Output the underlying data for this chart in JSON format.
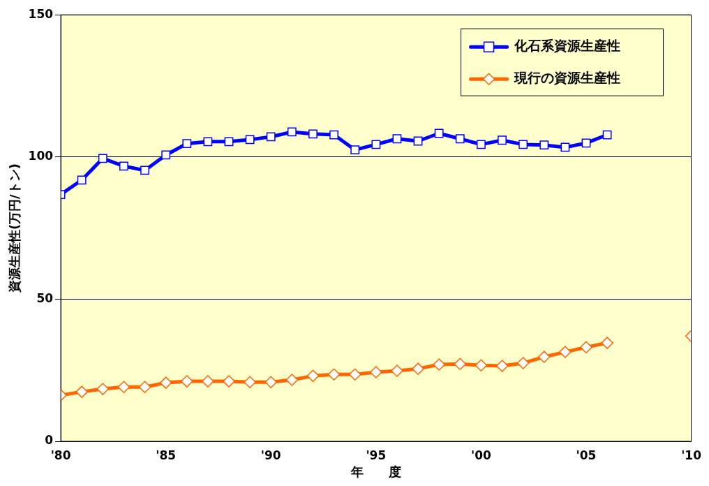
{
  "chart_data": {
    "type": "line",
    "xlabel": "年　　度",
    "ylabel": "資源生産性(万円/トン)",
    "xlim": [
      1980,
      2010
    ],
    "xticks": [
      {
        "value": 1980,
        "label": "'80"
      },
      {
        "value": 1985,
        "label": "'85"
      },
      {
        "value": 1990,
        "label": "'90"
      },
      {
        "value": 1995,
        "label": "'95"
      },
      {
        "value": 2000,
        "label": "'00"
      },
      {
        "value": 2005,
        "label": "'05"
      },
      {
        "value": 2010,
        "label": "'10"
      }
    ],
    "ylim": [
      0,
      150
    ],
    "yticks": [
      0,
      50,
      100,
      150
    ],
    "grid": "y",
    "legend": "top right",
    "line_style": "solid",
    "series": [
      {
        "name": "化石系資源生産性",
        "color": "#0000ff",
        "marker": "square",
        "x": [
          1980,
          1981,
          1982,
          1983,
          1984,
          1985,
          1986,
          1987,
          1988,
          1989,
          1990,
          1991,
          1992,
          1993,
          1994,
          1995,
          1996,
          1997,
          1998,
          1999,
          2000,
          2001,
          2002,
          2003,
          2004,
          2005,
          2006
        ],
        "values": [
          86.8,
          91.9,
          99.5,
          96.8,
          95.3,
          100.7,
          104.7,
          105.4,
          105.4,
          106.1,
          107.1,
          108.8,
          108.1,
          107.8,
          102.5,
          104.4,
          106.4,
          105.6,
          108.3,
          106.4,
          104.4,
          105.9,
          104.4,
          104.2,
          103.4,
          104.9,
          107.8
        ]
      },
      {
        "name": "現行の資源生産性",
        "color": "#ff6600",
        "marker": "diamond",
        "x": [
          1980,
          1981,
          1982,
          1983,
          1984,
          1985,
          1986,
          1987,
          1988,
          1989,
          1990,
          1991,
          1992,
          1993,
          1994,
          1995,
          1996,
          1997,
          1998,
          1999,
          2000,
          2001,
          2002,
          2003,
          2004,
          2005,
          2006,
          2007,
          2008,
          2009,
          2010
        ],
        "values": [
          16.2,
          17.4,
          18.4,
          19.1,
          19.1,
          20.6,
          21.1,
          21.1,
          21.1,
          20.8,
          20.8,
          21.6,
          23.0,
          23.5,
          23.5,
          24.3,
          24.8,
          25.5,
          27.0,
          27.2,
          26.7,
          26.5,
          27.5,
          29.7,
          31.4,
          33.1,
          34.6,
          null,
          null,
          null,
          37.0
        ]
      }
    ]
  }
}
